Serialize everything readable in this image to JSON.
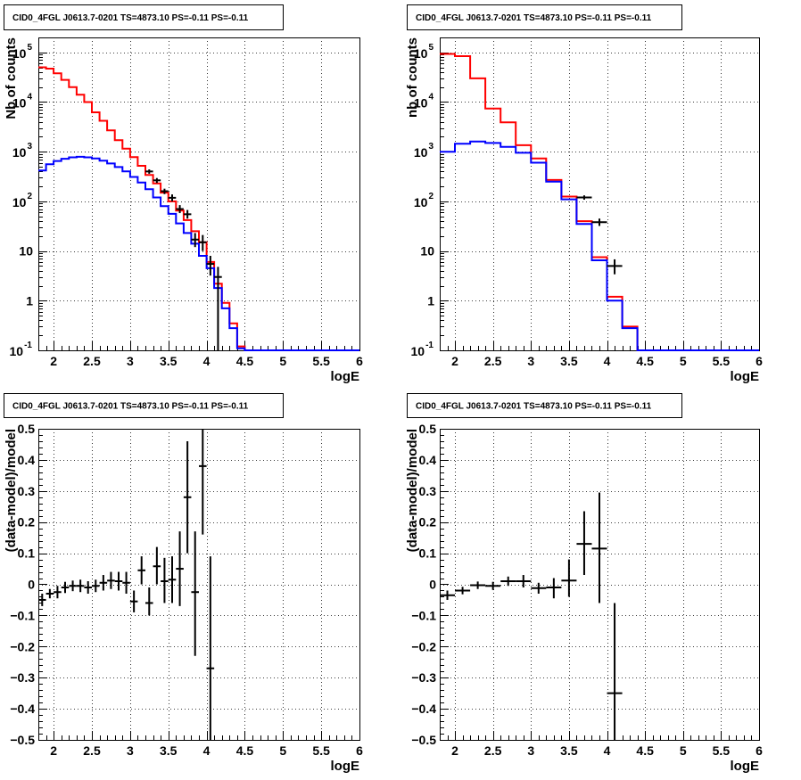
{
  "chart_data": [
    {
      "type": "line",
      "title": "CID0_4FGL J0613.7-0201 TS=4873.10 PS=-0.11 PS=-0.11",
      "xlabel": "logE",
      "ylabel": "Nb of counts",
      "xlim": [
        1.8,
        6.0
      ],
      "ylim": [
        0.1,
        200000
      ],
      "log_y": true,
      "grid": true,
      "x_ticks": [
        2,
        2.5,
        3,
        3.5,
        4,
        4.5,
        5,
        5.5,
        6
      ],
      "x_tick_labels": [
        "2",
        "2.5",
        "3",
        "3.5",
        "4",
        "4.5",
        "5",
        "5.5",
        "6"
      ],
      "y_ticks": [
        {
          "value": 0.1,
          "mantissa": "10",
          "exp": "-1"
        },
        {
          "value": 1,
          "mantissa": "1",
          "exp": ""
        },
        {
          "value": 10,
          "mantissa": "10",
          "exp": ""
        },
        {
          "value": 100,
          "mantissa": "10",
          "exp": "2"
        },
        {
          "value": 1000,
          "mantissa": "10",
          "exp": "3"
        },
        {
          "value": 10000,
          "mantissa": "10",
          "exp": "4"
        },
        {
          "value": 100000,
          "mantissa": "10",
          "exp": "5"
        }
      ],
      "bin_edges": [
        1.8,
        1.9,
        2.0,
        2.1,
        2.2,
        2.3,
        2.4,
        2.5,
        2.6,
        2.7,
        2.8,
        2.9,
        3.0,
        3.1,
        3.2,
        3.3,
        3.4,
        3.5,
        3.6,
        3.7,
        3.8,
        3.9,
        4.0,
        4.1,
        4.2,
        4.3,
        4.4,
        4.5,
        6.0
      ],
      "series": [
        {
          "color": "#ff0000",
          "style": "step",
          "values": [
            50000,
            47000,
            38000,
            28000,
            20000,
            14000,
            10000,
            6200,
            4200,
            2700,
            1700,
            1150,
            780,
            520,
            340,
            230,
            150,
            100,
            65,
            42,
            25,
            15,
            6,
            2.2,
            0.9,
            0.35,
            0.12,
            0.1
          ]
        },
        {
          "color": "#0000ff",
          "style": "step",
          "values": [
            420,
            560,
            650,
            720,
            770,
            790,
            770,
            730,
            660,
            580,
            490,
            400,
            310,
            240,
            175,
            120,
            80,
            56,
            36,
            23,
            14,
            8,
            4.5,
            1.8,
            0.7,
            0.28,
            0.11,
            0.1
          ]
        }
      ],
      "points": [
        {
          "x": 3.25,
          "y": 400,
          "lo": 360,
          "hi": 440
        },
        {
          "x": 3.35,
          "y": 265,
          "lo": 235,
          "hi": 295
        },
        {
          "x": 3.45,
          "y": 160,
          "lo": 140,
          "hi": 180
        },
        {
          "x": 3.55,
          "y": 118,
          "lo": 100,
          "hi": 138
        },
        {
          "x": 3.65,
          "y": 70,
          "lo": 58,
          "hi": 84
        },
        {
          "x": 3.75,
          "y": 55,
          "lo": 45,
          "hi": 67
        },
        {
          "x": 3.85,
          "y": 17,
          "lo": 12,
          "hi": 23
        },
        {
          "x": 3.95,
          "y": 15,
          "lo": 10,
          "hi": 21
        },
        {
          "x": 4.05,
          "y": 5.5,
          "lo": 3.2,
          "hi": 8
        },
        {
          "x": 4.15,
          "y": 3,
          "lo": 0.1,
          "hi": 4.8
        }
      ]
    },
    {
      "type": "line",
      "title": "CID0_4FGL J0613.7-0201 TS=4873.10 PS=-0.11 PS=-0.11",
      "xlabel": "logE",
      "ylabel": "nb of counts",
      "xlim": [
        1.8,
        6.0
      ],
      "ylim": [
        0.1,
        200000
      ],
      "log_y": true,
      "grid": true,
      "x_ticks": [
        2,
        2.5,
        3,
        3.5,
        4,
        4.5,
        5,
        5.5,
        6
      ],
      "x_tick_labels": [
        "2",
        "2.5",
        "3",
        "3.5",
        "4",
        "4.5",
        "5",
        "5.5",
        "6"
      ],
      "y_ticks": [
        {
          "value": 0.1,
          "mantissa": "10",
          "exp": "-1"
        },
        {
          "value": 1,
          "mantissa": "1",
          "exp": ""
        },
        {
          "value": 10,
          "mantissa": "10",
          "exp": ""
        },
        {
          "value": 100,
          "mantissa": "10",
          "exp": "2"
        },
        {
          "value": 1000,
          "mantissa": "10",
          "exp": "3"
        },
        {
          "value": 10000,
          "mantissa": "10",
          "exp": "4"
        },
        {
          "value": 100000,
          "mantissa": "10",
          "exp": "5"
        }
      ],
      "bin_edges": [
        1.8,
        2.0,
        2.2,
        2.4,
        2.6,
        2.8,
        3.0,
        3.2,
        3.4,
        3.6,
        3.8,
        4.0,
        4.2,
        4.4,
        4.6,
        6.0
      ],
      "series": [
        {
          "color": "#ff0000",
          "style": "step",
          "values": [
            93000,
            84000,
            30000,
            7400,
            3900,
            1350,
            730,
            270,
            125,
            40,
            7.5,
            1.2,
            0.3,
            0.1,
            0.1
          ]
        },
        {
          "color": "#0000ff",
          "style": "step",
          "values": [
            1000,
            1450,
            1600,
            1500,
            1250,
            950,
            600,
            250,
            110,
            35,
            6.5,
            1.0,
            0.28,
            0.1,
            0.1
          ]
        }
      ],
      "points": [
        {
          "x": 3.7,
          "y": 120,
          "lo": 108,
          "hi": 132
        },
        {
          "x": 3.9,
          "y": 38,
          "lo": 32,
          "hi": 45
        },
        {
          "x": 4.1,
          "y": 5,
          "lo": 3.4,
          "hi": 6.8
        }
      ]
    },
    {
      "type": "scatter",
      "title": "CID0_4FGL J0613.7-0201 TS=4873.10 PS=-0.11 PS=-0.11",
      "xlabel": "logE",
      "ylabel": "(data-model)/model",
      "xlim": [
        1.8,
        6.0
      ],
      "ylim": [
        -0.5,
        0.5
      ],
      "log_y": false,
      "grid": true,
      "x_ticks": [
        2,
        2.5,
        3,
        3.5,
        4,
        4.5,
        5,
        5.5,
        6
      ],
      "x_tick_labels": [
        "2",
        "2.5",
        "3",
        "3.5",
        "4",
        "4.5",
        "5",
        "5.5",
        "6"
      ],
      "y_ticks": [
        {
          "value": -0.5,
          "label": "−0.5"
        },
        {
          "value": -0.4,
          "label": "−0.4"
        },
        {
          "value": -0.3,
          "label": "−0.3"
        },
        {
          "value": -0.2,
          "label": "−0.2"
        },
        {
          "value": -0.1,
          "label": "−0.1"
        },
        {
          "value": 0,
          "label": "0"
        },
        {
          "value": 0.1,
          "label": "0.1"
        },
        {
          "value": 0.2,
          "label": "0.2"
        },
        {
          "value": 0.3,
          "label": "0.3"
        },
        {
          "value": 0.4,
          "label": "0.4"
        },
        {
          "value": 0.5,
          "label": "0.5"
        }
      ],
      "bin_width": 0.1,
      "points": [
        {
          "x": 1.85,
          "y": -0.05,
          "lo": -0.07,
          "hi": -0.03
        },
        {
          "x": 1.95,
          "y": -0.03,
          "lo": -0.045,
          "hi": -0.015
        },
        {
          "x": 2.05,
          "y": -0.025,
          "lo": -0.045,
          "hi": -0.005
        },
        {
          "x": 2.15,
          "y": -0.01,
          "lo": -0.028,
          "hi": 0.008
        },
        {
          "x": 2.25,
          "y": -0.005,
          "lo": -0.022,
          "hi": 0.012
        },
        {
          "x": 2.35,
          "y": -0.005,
          "lo": -0.025,
          "hi": 0.015
        },
        {
          "x": 2.45,
          "y": -0.01,
          "lo": -0.03,
          "hi": 0.01
        },
        {
          "x": 2.55,
          "y": -0.005,
          "lo": -0.025,
          "hi": 0.015
        },
        {
          "x": 2.65,
          "y": 0.005,
          "lo": -0.02,
          "hi": 0.03
        },
        {
          "x": 2.75,
          "y": 0.012,
          "lo": -0.015,
          "hi": 0.04
        },
        {
          "x": 2.85,
          "y": 0.01,
          "lo": -0.02,
          "hi": 0.04
        },
        {
          "x": 2.95,
          "y": 0.005,
          "lo": -0.03,
          "hi": 0.04
        },
        {
          "x": 3.05,
          "y": -0.055,
          "lo": -0.09,
          "hi": -0.02
        },
        {
          "x": 3.15,
          "y": 0.045,
          "lo": 0.0,
          "hi": 0.09
        },
        {
          "x": 3.25,
          "y": -0.06,
          "lo": -0.1,
          "hi": -0.01
        },
        {
          "x": 3.35,
          "y": 0.058,
          "lo": 0.0,
          "hi": 0.12
        },
        {
          "x": 3.45,
          "y": 0.01,
          "lo": -0.06,
          "hi": 0.085
        },
        {
          "x": 3.55,
          "y": 0.015,
          "lo": -0.06,
          "hi": 0.09
        },
        {
          "x": 3.65,
          "y": 0.05,
          "lo": -0.07,
          "hi": 0.17
        },
        {
          "x": 3.75,
          "y": 0.28,
          "lo": 0.1,
          "hi": 0.46
        },
        {
          "x": 3.85,
          "y": -0.025,
          "lo": -0.23,
          "hi": 0.17
        },
        {
          "x": 3.95,
          "y": 0.38,
          "lo": 0.16,
          "hi": 0.5
        },
        {
          "x": 4.05,
          "y": -0.27,
          "lo": -0.5,
          "hi": 0.09
        }
      ]
    },
    {
      "type": "scatter",
      "title": "CID0_4FGL J0613.7-0201 TS=4873.10 PS=-0.11 PS=-0.11",
      "xlabel": "logE",
      "ylabel": "(data-model)/model",
      "xlim": [
        1.8,
        6.0
      ],
      "ylim": [
        -0.5,
        0.5
      ],
      "log_y": false,
      "grid": true,
      "x_ticks": [
        2,
        2.5,
        3,
        3.5,
        4,
        4.5,
        5,
        5.5,
        6
      ],
      "x_tick_labels": [
        "2",
        "2.5",
        "3",
        "3.5",
        "4",
        "4.5",
        "5",
        "5.5",
        "6"
      ],
      "y_ticks": [
        {
          "value": -0.5,
          "label": "−0.5"
        },
        {
          "value": -0.4,
          "label": "−0.4"
        },
        {
          "value": -0.3,
          "label": "−0.3"
        },
        {
          "value": -0.2,
          "label": "−0.2"
        },
        {
          "value": -0.1,
          "label": "−0.1"
        },
        {
          "value": 0,
          "label": "0"
        },
        {
          "value": 0.1,
          "label": "0.1"
        },
        {
          "value": 0.2,
          "label": "0.2"
        },
        {
          "value": 0.3,
          "label": "0.3"
        },
        {
          "value": 0.4,
          "label": "0.4"
        },
        {
          "value": 0.5,
          "label": "0.5"
        }
      ],
      "bin_width": 0.2,
      "points": [
        {
          "x": 1.9,
          "y": -0.035,
          "lo": -0.05,
          "hi": -0.02
        },
        {
          "x": 2.1,
          "y": -0.02,
          "lo": -0.032,
          "hi": -0.008
        },
        {
          "x": 2.3,
          "y": -0.003,
          "lo": -0.015,
          "hi": 0.009
        },
        {
          "x": 2.5,
          "y": -0.005,
          "lo": -0.018,
          "hi": 0.008
        },
        {
          "x": 2.7,
          "y": 0.01,
          "lo": -0.005,
          "hi": 0.025
        },
        {
          "x": 2.9,
          "y": 0.01,
          "lo": -0.01,
          "hi": 0.03
        },
        {
          "x": 3.1,
          "y": -0.012,
          "lo": -0.03,
          "hi": 0.005
        },
        {
          "x": 3.3,
          "y": -0.01,
          "lo": -0.045,
          "hi": 0.02
        },
        {
          "x": 3.5,
          "y": 0.012,
          "lo": -0.04,
          "hi": 0.08
        },
        {
          "x": 3.7,
          "y": 0.13,
          "lo": 0.03,
          "hi": 0.235
        },
        {
          "x": 3.9,
          "y": 0.115,
          "lo": -0.06,
          "hi": 0.295
        },
        {
          "x": 4.1,
          "y": -0.35,
          "lo": -0.5,
          "hi": -0.06
        }
      ]
    }
  ]
}
